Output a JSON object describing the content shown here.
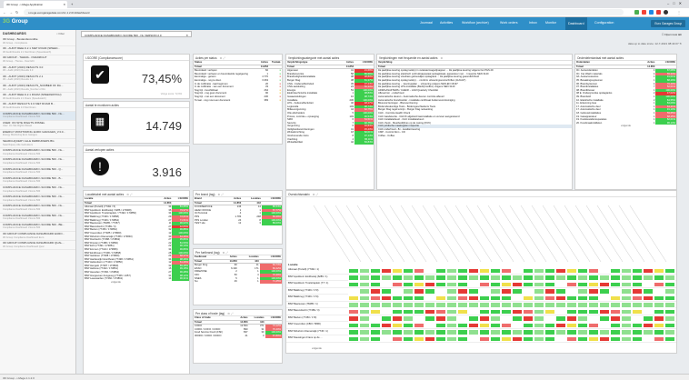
{
  "browser": {
    "tab_title": "3D Group - i-Mega Application",
    "url": "i-mega.eurogaragedata.com/v1.1.2.0/nl/dashboard",
    "ext_colors": [
      "#4caf50",
      "#f44336",
      "#1e88e5",
      "#e53935",
      "#333333",
      "#8e24aa"
    ]
  },
  "app": {
    "logo_prefix": "3G",
    "logo_text": "Group",
    "menu": [
      "Journaal",
      "Activities",
      "Workflow (archive)",
      "Work orders",
      "Inbox",
      "Monitor",
      "Dashboard",
      "Configuration"
    ],
    "active_menu": "Dashboard",
    "user": "Euro Garages Group"
  },
  "sidebar": {
    "title": "DASHBOARDS",
    "filter": "Filter",
    "items": [
      {
        "t": "3D Group - Bestandsconditie",
        "s": "3D Group - Compliance"
      },
      {
        "t": "3D - AUDIT REELS 2.1 NIET ROAM (SPEED...",
        "s": "3D Audit Results 2.1 Niet Roam (Speedwatch)"
      },
      {
        "t": "3D GROUP - THEMA - OVERZICHT",
        "s": "3D Group - Thema - Overzicht"
      },
      {
        "t": "3D - AUDIT (2023) RESULTS 3.0",
        "s": "3D - Audit (2023) Results 3.0"
      },
      {
        "t": "3D - AUDIT (2023) RESULTS 2.1",
        "s": "3D - Audit (2023) Results 2.1"
      },
      {
        "t": "3D - AUDIT (2023) RESULTS_NUMBER OF RA...",
        "s": "3D - Audit (2023) Results_Number of RA"
      },
      {
        "t": "3D - AUDIT REELS 2.1 ROAM (SPEEDWATCH)",
        "s": "3D Audit Results 2.1 Roam (Speedwatch)"
      },
      {
        "t": "3D - AUDIT RESULTS 3.0 NIET ROAM B...",
        "s": "3D Audit Results 3.0 Niet Roam"
      },
      {
        "t": "COMPLIANCE DASHBOARD I-SCORE 500 - NL...",
        "s": "Compliance Dashboard I-Score 500"
      },
      {
        "t": "USER: ON SITE RIGHTS WISSEL",
        "s": "User: On Site Rights Wissel"
      },
      {
        "t": "ENERGY MONITORING EURO GARAGES_V.3.0...",
        "s": "Energy Monitoring Euro Garages"
      },
      {
        "t": "SEARCHQUERY ALLE DEBRUIKERS BG",
        "s": "Searchquery Alle Gebruikers"
      },
      {
        "t": "COMPLIANCE DASHBOARD I-SCORE 500 - NL...",
        "s": "Compliance Dashboard I-Score 500"
      },
      {
        "t": "COMPLIANCE DASHBOARD I-SCORE 500 - NL...",
        "s": "Compliance Dashboard I-Score 500"
      },
      {
        "t": "COMPLIANCE DASHBOARD I-SCORE 500 - Q...",
        "s": "Compliance Dashboard I-Score 500"
      },
      {
        "t": "COMPLIANCE DASHBOARD I-SCORE 500 - B...",
        "s": "Compliance Dashboard I-Score 500"
      },
      {
        "t": "COMPLIANCE DASHBOARD I-SCORE 500 - NL...",
        "s": "Compliance Dashboard I-Score 500"
      },
      {
        "t": "COMPLIANCE DASHBOARD I-SCORE 500 - NL...",
        "s": "Compliance Dashboard I-Score 500"
      },
      {
        "t": "COMPLIANCE DASHBOARD I-SCORE 500 - NL...",
        "s": "Compliance Dashboard I-Score 500"
      },
      {
        "t": "COMPLIANCE DASHBOARD I-SCORE 500 - NL...",
        "s": "Compliance Dashboard I-Score 500"
      },
      {
        "t": "COMPLIANCE DASHBOARD I-SCORE 500 - BE...",
        "s": "Compliance Dashboard I-Score 500"
      },
      {
        "t": "3D GROUP COMPLIANCE DASHBOARD EURO...",
        "s": "3D Group Compliance Dashboard Euro"
      },
      {
        "t": "3D GROUP COMPLIANCE DASHBOARD QUAL...",
        "s": "3D Group Compliance Dashboard Qual"
      }
    ],
    "active_index": 8
  },
  "dashboard": {
    "tab_label": "COMPLIANCE DASHBOARD I-SCORE 500 - NL VERSION 2.0",
    "open_new": "Open new tab",
    "cache_text": "data up to date since: 12-7-2021 08:44:07"
  },
  "kpi": {
    "compliance": {
      "title": "I-SCORE (Compliancescore)",
      "value": "73,45%",
      "sub": "Vorige score: 72,9%"
    },
    "total": {
      "title": "Aantal te monitoren acties",
      "value": "14.749"
    },
    "overdue": {
      "title": "Aantal verlopen acties",
      "value": "3.916"
    }
  },
  "status_panel": {
    "title": "Acties per status",
    "cols": [
      "Status",
      "Acties",
      "Toelaat."
    ],
    "total": [
      "Totaal",
      "14.853",
      ""
    ],
    "rows": [
      [
        "Beoordeelt: verlopen",
        "82",
        "●"
      ],
      [
        "Beoordeelt: verlopen en beoordeelde regelgeving",
        "1",
        "●"
      ],
      [
        "Eenmalige - gereen",
        "4.770",
        "●"
      ],
      [
        "Eenmalige - nog te doen",
        "3.363",
        "●"
      ],
      [
        "In de notificatie - laat beginnen",
        "20",
        "●"
      ],
      [
        "In de notificatie - van een document",
        "33",
        "●"
      ],
      [
        "Nog bijt - beschikbaar",
        "264",
        "●"
      ],
      [
        "Nog bijt - nog geen document",
        "90",
        "●"
      ],
      [
        "Nog bijt - met een document",
        "230",
        "●"
      ],
      [
        "Te laat - nog moet een document",
        "383",
        "●"
      ]
    ]
  },
  "verplichting_cat": {
    "title": "Verplichtingscategorie met aantal acties",
    "cols": [
      "Verplichtingstype",
      "Acties",
      "I-SCORE"
    ],
    "total": [
      "Totaal",
      "14.853",
      ""
    ],
    "rows": [
      [
        "Algemeen",
        "41",
        "21,69%",
        "r"
      ],
      [
        "Brandpreventie",
        "58",
        "85,56%",
        "g"
      ],
      [
        "Brandveiligheidsinstallatie",
        "38",
        "38,80%",
        "r"
      ],
      [
        "Burger Klag",
        "38",
        "81,37%",
        "g"
      ],
      [
        "CNG - bodemeffectiviteit",
        "45",
        "37,24%",
        "r"
      ],
      [
        "CNG aansluiting",
        "24",
        "56,33%",
        "o"
      ],
      [
        "Energie",
        "53",
        "100,00%",
        "g"
      ],
      [
        "Elektrotechnische installatie",
        "1",
        "98,83%",
        "g"
      ],
      [
        "Gasaansluitingen",
        "16",
        "98,74%",
        "g"
      ],
      [
        "Installatie",
        "230",
        "100,00%",
        "g"
      ],
      [
        "LPG - bodemeffectiviteit",
        "40",
        "48,17%",
        "r"
      ],
      [
        "Legionella",
        "103",
        "98,74%",
        "g"
      ],
      [
        "Milieuvergunning",
        "44",
        "62,75%",
        "o"
      ],
      [
        "Olie afscheiders",
        "5",
        "100,00%",
        "g"
      ],
      [
        "Proces, controle + opvanging",
        "103",
        "90,54%",
        "g"
      ],
      [
        "SMO",
        "6",
        "54,51%",
        "o"
      ],
      [
        "Security",
        "7",
        "92,75%",
        "g"
      ],
      [
        "Vergunning",
        "6",
        "46,84%",
        "r"
      ],
      [
        "Veiligheidsvoorzieningen",
        "41",
        "45,43%",
        "r"
      ],
      [
        "Winkelinrichting",
        "18",
        "82,01%",
        "g"
      ],
      [
        "Voorkomende risico",
        "8",
        "97,14%",
        "g"
      ],
      [
        "Vrachting",
        "4",
        "86,11%",
        "g"
      ],
      [
        "Winkelfaciliteit",
        "42",
        "84,84%",
        "g"
      ]
    ]
  },
  "verplichting": {
    "title": "Verplichtingen met frequentie en aantal acties",
    "col": "Verplichting",
    "total": "Totaal",
    "rows": [
      "1E jaarlijkse keuring opslag tank(s) in vuilwatermagazijnappen ... 1E jaarlijkse keuring volgens het PGS 29",
      "1E jaarlijkse keuring elektrisch verbruiksapparaat opslaglokaal, apparatuur met ... Inspectie NEN 3140",
      "1E jaarlijkse keuring vloeibare gebouwlijke opslagtank ... 1E jaarlijkse keuring gasondichtheid",
      "1E jaarlijkse keuring opslag tank(s) ... conform uitvoeringsvoorschriften (AUGGT)",
      "1E jaarlijkse keuring ... keuringsplan ... uitvoering volgens NEN-EN 16197",
      "1E jaarlijkse keuring LPG-installatie (Bedrijf stoffen) volgens NEN 3140",
      "ADR/GASAFTERS / CHECK - LGM Quarterly Checklist",
      "Afleverinsl. - onderhoud",
      "Automatische deuren - Automatische deuren controle afleverl",
      "Automatische brandmelder - installatie certificaat bodemverontreiniging",
      "Blusvoorzieningen - Blusvoorziening",
      "Bodemdeskundige Toets - Bodemgeschiedenis Toets",
      "Burger Klag regel termijn - Burger Klag netwerking",
      "CHC - Controle Health Check",
      "CHC Gasdetectie - CHC/K afgebeid Gasinstallatie en vervoer aangerekend",
      "CHC Installatiebeurt - CHC installatiebeurt",
      "CHC check - Meetbedrijfnes op de meting (KNV)",
      "CHC juridische maatregelen inspectie",
      "CHC onderhoud - 8x - kwaliteit keuring",
      "CMP - Control Dom - CD",
      "Coffee - Coffee"
    ]
  },
  "onderdelen": {
    "title": "Onderdelenlantaal met aantal acties",
    "cols": [
      "Onderdelen",
      "Acties",
      "I-SCORE"
    ],
    "total": [
      "Totaal",
      "14.853",
      ""
    ],
    "rows": [
      [
        "0C. Autounderdelen",
        "4",
        "87,08%",
        "g"
      ],
      [
        "0C. Car Wash materials",
        "4",
        "55,33%",
        "o"
      ],
      [
        "0A. Autoaccessoires",
        "1",
        "91,01%",
        "g"
      ],
      [
        "05. Bewakingssystemen",
        "1",
        "88,29%",
        "g"
      ],
      [
        "06. Brandsystemen",
        "4",
        "70,40%",
        "o"
      ],
      [
        "07. Brandinstallaties",
        "7",
        "52,01%",
        "o"
      ],
      [
        "08. Brandblusser",
        "1",
        "100,00%",
        "g"
      ],
      [
        "08 E. Ondergrondse opslagtanks",
        "2",
        "47,02%",
        "r"
      ],
      [
        "09. Brandstof",
        "1",
        "100,00%",
        "g"
      ],
      [
        "10. Elektrische installatie",
        "2",
        "84,55%",
        "g"
      ],
      [
        "11. Erkenning Gas",
        "1",
        "84,09%",
        "g"
      ],
      [
        "17. Automatische deur",
        "1",
        "64,21%",
        "o"
      ],
      [
        "17. Automatische deur",
        "1",
        "91,10%",
        "g"
      ],
      [
        "18. Gebouwinstallaties",
        "1",
        "59,65%",
        "o"
      ],
      [
        "19. Gasapparatuur",
        "1",
        "68,25%",
        "o"
      ],
      [
        "19. Koeltoestellenreparaties",
        "1",
        "82,01%",
        "g"
      ],
      [
        "20. Koudmaakmiddelen",
        "1",
        "96,13%",
        "g"
      ]
    ],
    "footer": "volgende"
  },
  "locaties": {
    "title": "Locatietabel met aantal acties",
    "cols": [
      "Locatie",
      "Acties",
      "I-SCORE"
    ],
    "total": [
      "Totaal",
      "14.853",
      ""
    ],
    "rows": [
      [
        "Alkmaar (Purwill) (77491 / 5)",
        "34",
        "81,65%",
        "g"
      ],
      [
        "BSP Apeldoorn Eindbuskij / 6286 / 173908)",
        "36",
        "79,97%",
        "o"
      ],
      [
        "BSP Apeldoorn Troelstraplein / 77492 / 173850)",
        "34",
        "100,00%",
        "g"
      ],
      [
        "BSP Balkbrug (77446 / 173868)",
        "29",
        "72,01%",
        "o"
      ],
      [
        "BSP Balkbrug (77446 / 173864)",
        "27",
        "71,51%",
        "o"
      ],
      [
        "BSP Baarsveen (78485 / 77357)",
        "11",
        "96,02%",
        "g"
      ],
      [
        "BSP Barendrecht (77489 / 3)",
        "27",
        "42,84%",
        "r"
      ],
      [
        "BSP Bedum (77450 / 173864)",
        "32",
        "96,88%",
        "g"
      ],
      [
        "BSP Coevorden (77485 / 173860)",
        "12",
        "100,00%",
        "g"
      ],
      [
        "BSP Dirkshorn Diemerwijk (77456 / 173840)",
        "33",
        "64,30%",
        "o"
      ],
      [
        "BSP Dordrecht (77488 / 173862)",
        "27",
        "95,80%",
        "g"
      ],
      [
        "BSP Dronten (77488 / 173860)",
        "22",
        "81,53%",
        "g"
      ],
      [
        "BSP Echt (77491 / 173851)",
        "22",
        "96,13%",
        "g"
      ],
      [
        "BSP Emmen (77444 / 173866)",
        "34",
        "96,80%",
        "g"
      ],
      [
        "BSP Eindhoven (77496 / 173868)",
        "28",
        "100,00%",
        "g"
      ],
      [
        "BSP Gelderen (77488 / 173860)",
        "24",
        "68,47%",
        "o"
      ],
      [
        "BSP Harderwijk Noordhoek (77498 / 173861)",
        "34",
        "98,49%",
        "g"
      ],
      [
        "BSP Hellendoorn (77440 / 173850)",
        "12",
        "61,40%",
        "o"
      ],
      [
        "BSP Hengelo (77487 / 173860)",
        "32",
        "89,28%",
        "g"
      ],
      [
        "BSP Hellouw (77402 / 173861)",
        "16",
        "99,18%",
        "g"
      ],
      [
        "BSP Heusden (77466 / 173862)",
        "27",
        "96,28%",
        "g"
      ],
      [
        "BSP Hoogeveen-hoogeveg (77466 / 2457)",
        "31",
        "98,12%",
        "g"
      ],
      [
        "BSP Leeuwarden (77460 / 173861)",
        "14",
        "96,31%",
        "g"
      ]
    ],
    "footer": "volgende"
  },
  "brand": {
    "title": "Per brand (tag)",
    "cols": [
      "Brand",
      "Acties",
      "Locaties",
      "I-SCORE"
    ],
    "total": [
      "Totaal",
      "14.853",
      "443",
      ""
    ],
    "rows": [
      [
        "FOODSERVICE",
        "136",
        "14",
        "85,54%",
        "g"
      ],
      [
        "HEAD OFFICE",
        "1",
        "1",
        "57,77%",
        "o"
      ],
      [
        "Oil Terminal",
        "4",
        "1",
        "100,00%",
        "g"
      ],
      [
        "PFS",
        "1.783",
        "248",
        "69,39%",
        "o"
      ],
      [
        "PFS Londen",
        "24",
        "8",
        "100,00%",
        "g"
      ],
      [
        "TEST site",
        "12",
        "3",
        "89,00%",
        "g"
      ]
    ]
  },
  "fuel": {
    "title": "Per fuelbrand (tag)",
    "cols": [
      "Fuelbrand",
      "Acties",
      "Locaties",
      "I-SCORE"
    ],
    "total": [
      "Totaal",
      "14.853",
      "443",
      ""
    ],
    "rows": [
      [
        "Burger King",
        "90",
        "11",
        "63,73%",
        "o"
      ],
      [
        "ESSO",
        "6.190",
        "171",
        "66,42%",
        "o"
      ],
      [
        "FIREZONE",
        "2",
        "1",
        "100,00%",
        "g"
      ],
      [
        "KFC",
        "50",
        "4",
        "70,39%",
        "o"
      ],
      [
        "NNES",
        "5",
        "1",
        "100,00%",
        "g"
      ],
      [
        "Nu",
        "46",
        "1",
        "71,45%",
        "o"
      ]
    ]
  },
  "trade": {
    "title": "Per class of trade (tag)",
    "cols": [
      "Class of trade",
      "Acties",
      "Locaties",
      "I-SCORE"
    ],
    "total": [
      "Totaal",
      "14.853",
      "443",
      ""
    ],
    "rows": [
      [
        "CODO",
        "12.564",
        "371",
        "73,12%",
        "o"
      ],
      [
        "CORO / COFO / CODO",
        "890",
        "31",
        "76,40%",
        "o"
      ],
      [
        "Food Service Fresh (FSF)",
        "837",
        "30",
        "100,00%",
        "g"
      ],
      [
        "IRORO / CODO / DODO",
        "41",
        "3",
        "67,80%",
        "o"
      ]
    ]
  },
  "overzicht": {
    "title": "Overzichtsmatrix",
    "row_header": "Locatie",
    "rows": [
      "Alkmaar (Purwill) (77491 / 1)",
      "BSP Apeldoorn Eindbuskij (6286 / 1)",
      "BSP Apeldoorn Troelstraplein (77 / 1)",
      "BSP Balkbrug (77446 / 173)",
      "BSP Balkbrug (77446 / 174)",
      "BSP Baarsveen (78485 / 1)",
      "BSP Barendrecht (77489 / 3)",
      "BSP Bedum (77450 / 173)",
      "BSP Coevorden (CBO / 5896)",
      "BSP Dirkshorn Diemerwijk (7745 / 1)",
      "BSP Dauwingen Frans op de ..."
    ],
    "footer": "volgende"
  },
  "statusbar": "3D Group - i-Mega 1.1.2.0"
}
